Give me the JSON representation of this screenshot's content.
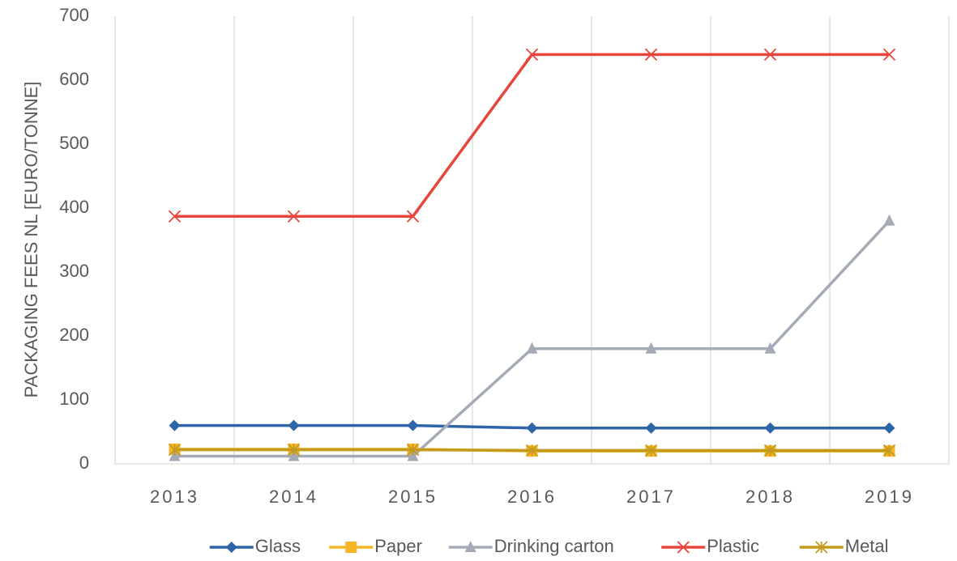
{
  "chart_data": {
    "type": "line",
    "y_label": "PACKAGING FEES NL [EURO/TONNE]",
    "categories": [
      "2013",
      "2014",
      "2015",
      "2016",
      "2017",
      "2018",
      "2019"
    ],
    "series": [
      {
        "name": "Glass",
        "color": "#2e64a8",
        "marker": "diamond",
        "values": [
          60,
          60,
          60,
          56,
          56,
          56,
          56
        ]
      },
      {
        "name": "Paper",
        "color": "#f5b727",
        "marker": "square",
        "values": [
          23,
          23,
          23,
          20,
          20,
          20,
          20
        ]
      },
      {
        "name": "Drinking carton",
        "color": "#a5abb6",
        "marker": "triangle",
        "values": [
          12,
          12,
          12,
          180,
          180,
          180,
          380
        ]
      },
      {
        "name": "Plastic",
        "color": "#e8453c",
        "marker": "x",
        "values": [
          387,
          387,
          387,
          640,
          640,
          640,
          640
        ]
      },
      {
        "name": "Metal",
        "color": "#c49a1e",
        "marker": "star",
        "values": [
          22,
          22,
          22,
          21,
          21,
          21,
          21
        ]
      }
    ],
    "ylim": [
      0,
      700
    ],
    "yticks": [
      0,
      100,
      200,
      300,
      400,
      500,
      600,
      700
    ],
    "grid": "x",
    "legend": "bottom"
  }
}
